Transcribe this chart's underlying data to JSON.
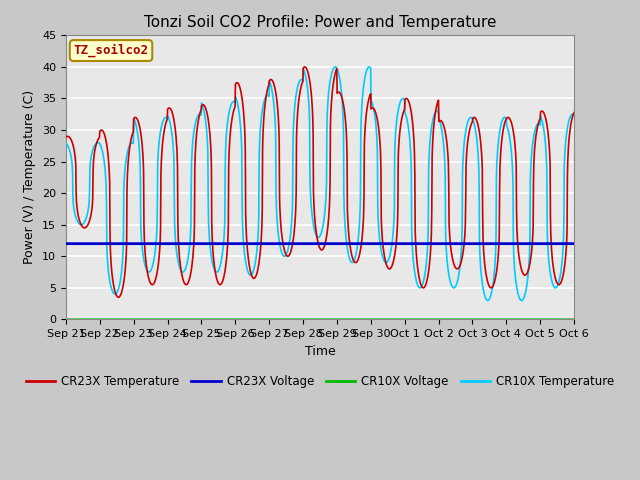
{
  "title": "Tonzi Soil CO2 Profile: Power and Temperature",
  "ylabel": "Power (V) / Temperature (C)",
  "xlabel": "Time",
  "ylim": [
    0,
    45
  ],
  "cr23x_voltage_value": 12.0,
  "cr10x_voltage_value": 0.0,
  "fig_bg_color": "#c8c8c8",
  "plot_bg_color": "#e8e8e8",
  "legend_label_text": "TZ_soilco2",
  "legend_label_bg": "#ffffcc",
  "legend_label_border": "#aa8800",
  "cr23x_temp_color": "#cc0000",
  "cr23x_volt_color": "#0000cc",
  "cr10x_volt_color": "#00bb00",
  "cr10x_temp_color": "#00ccff",
  "tick_labels": [
    "Sep 21",
    "Sep 22",
    "Sep 23",
    "Sep 24",
    "Sep 25",
    "Sep 26",
    "Sep 27",
    "Sep 28",
    "Sep 29",
    "Sep 30",
    "Oct 1",
    "Oct 2",
    "Oct 3",
    "Oct 4",
    "Oct 5",
    "Oct 6"
  ],
  "cr23x_amp_data": [
    [
      14.5,
      29
    ],
    [
      3.5,
      30
    ],
    [
      5.5,
      32
    ],
    [
      5.5,
      33.5
    ],
    [
      5.5,
      34
    ],
    [
      6.5,
      37.5
    ],
    [
      10.0,
      38.0
    ],
    [
      11.0,
      40.0
    ],
    [
      9.0,
      36.0
    ],
    [
      8.0,
      33.5
    ],
    [
      5.0,
      35.0
    ],
    [
      8.0,
      31.5
    ],
    [
      5.0,
      32.0
    ],
    [
      7.0,
      32.0
    ],
    [
      5.5,
      33.0
    ]
  ],
  "cr10x_amp_data": [
    [
      15.0,
      28.0
    ],
    [
      4.0,
      28.0
    ],
    [
      7.5,
      32.0
    ],
    [
      7.5,
      32.5
    ],
    [
      7.5,
      34.5
    ],
    [
      7.0,
      35.5
    ],
    [
      10.0,
      38.0
    ],
    [
      13.0,
      40.0
    ],
    [
      9.0,
      40.0
    ],
    [
      9.0,
      35.0
    ],
    [
      5.0,
      33.0
    ],
    [
      5.0,
      32.0
    ],
    [
      3.0,
      32.0
    ],
    [
      3.0,
      31.0
    ],
    [
      5.0,
      32.5
    ]
  ],
  "cr23x_phase": 0.55,
  "cr10x_phase": 0.45,
  "peak_sharpness": 3.0
}
